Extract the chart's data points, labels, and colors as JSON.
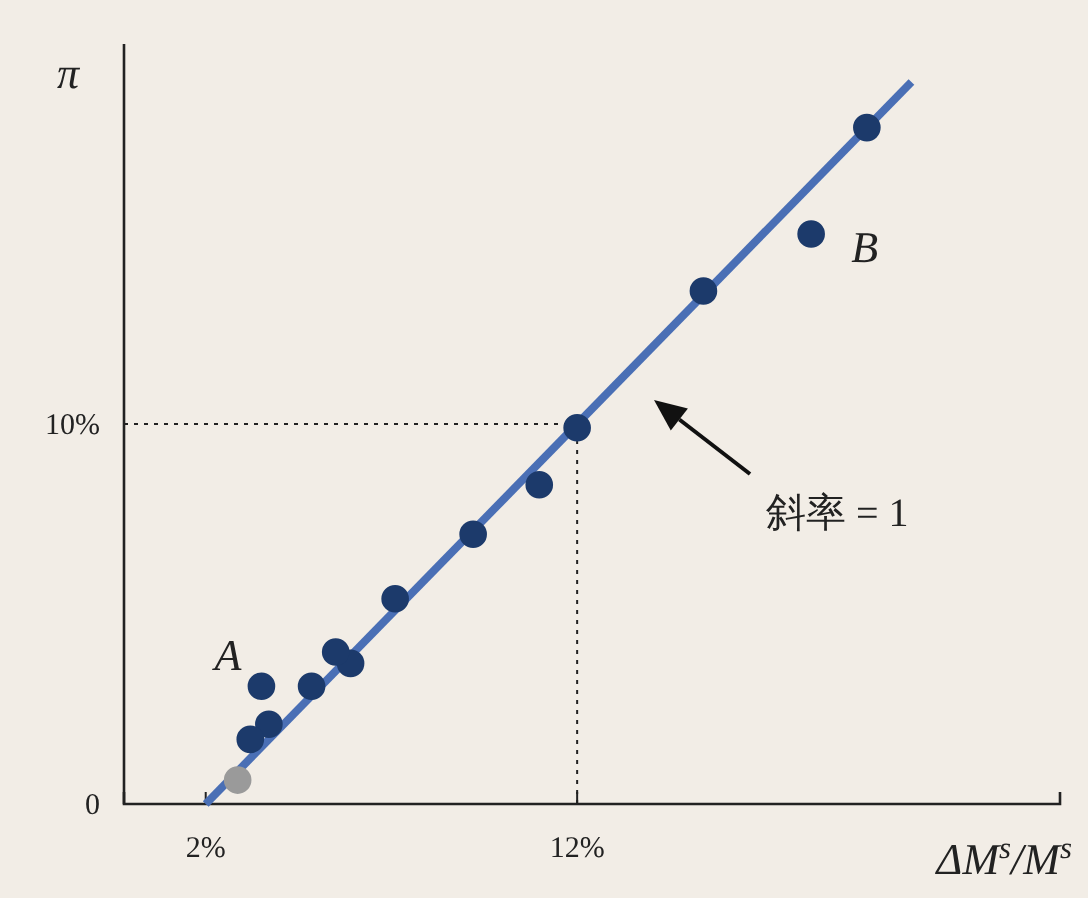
{
  "chart_data": {
    "type": "scatter",
    "xlabel": "ΔM$^{s}$/M$^{s}$",
    "ylabel": "π",
    "xlim": [
      -0.2,
      25
    ],
    "ylim": [
      0,
      20
    ],
    "xticks": [
      {
        "value": 2,
        "label": "2%"
      },
      {
        "value": 12,
        "label": "12%"
      }
    ],
    "yticks": [
      0,
      {
        "value": 10,
        "label": "10%"
      }
    ],
    "series": [
      {
        "type": "line",
        "color": "#4a6fb5",
        "x": [
          2,
          21
        ],
        "values": [
          0,
          19
        ]
      },
      {
        "marker": "circle",
        "x": [
          19.8,
          18.3,
          15.4,
          12,
          10.98,
          9.2,
          7.1,
          5.9,
          5.5,
          4.85,
          3.7,
          3.5,
          3.2,
          2.86
        ],
        "values": [
          17.8,
          15.0,
          13.5,
          9.9,
          8.4,
          7.1,
          5.4,
          3.7,
          4.0,
          3.1,
          2.1,
          3.1,
          1.7,
          0.63
        ],
        "colors": [
          "#1c3a6b",
          "#1c3a6b",
          "#1c3a6b",
          "#1c3a6b",
          "#1c3a6b",
          "#1c3a6b",
          "#1c3a6b",
          "#1c3a6b",
          "#1c3a6b",
          "#1c3a6b",
          "#1c3a6b",
          "#1c3a6b",
          "#1c3a6b",
          "#9a9a9a"
        ]
      }
    ],
    "ref_lines": [
      {
        "axis": "x",
        "value": 12,
        "line_style": "dotted"
      },
      {
        "axis": "y",
        "value": 10,
        "line_style": "dotted"
      }
    ],
    "annotations": [
      {
        "text": "A",
        "x": 3.5,
        "y": 3.1
      },
      {
        "text": "B",
        "x": 18.3,
        "y": 15.0
      },
      "斜率 = 1"
    ],
    "grid": false
  }
}
